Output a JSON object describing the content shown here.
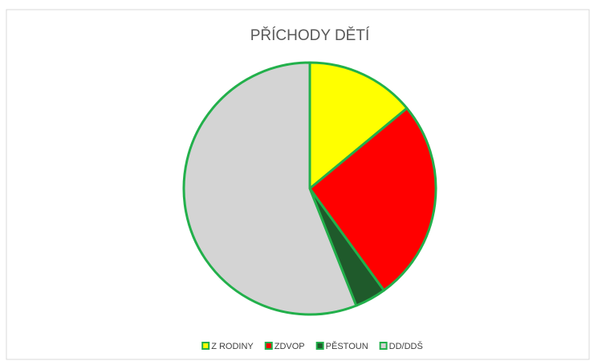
{
  "chart_data": {
    "type": "pie",
    "title": "PŘÍCHODY DĚTÍ",
    "categories": [
      "Z RODINY",
      "ZDVOP",
      "PĚSTOUN",
      "DD/DDŠ"
    ],
    "values": [
      14,
      26,
      4,
      56
    ],
    "colors": [
      "#ffff00",
      "#ff0000",
      "#1f5a2b",
      "#d4d4d4"
    ],
    "edge_color": "#22b04b",
    "legend": "bottom"
  }
}
